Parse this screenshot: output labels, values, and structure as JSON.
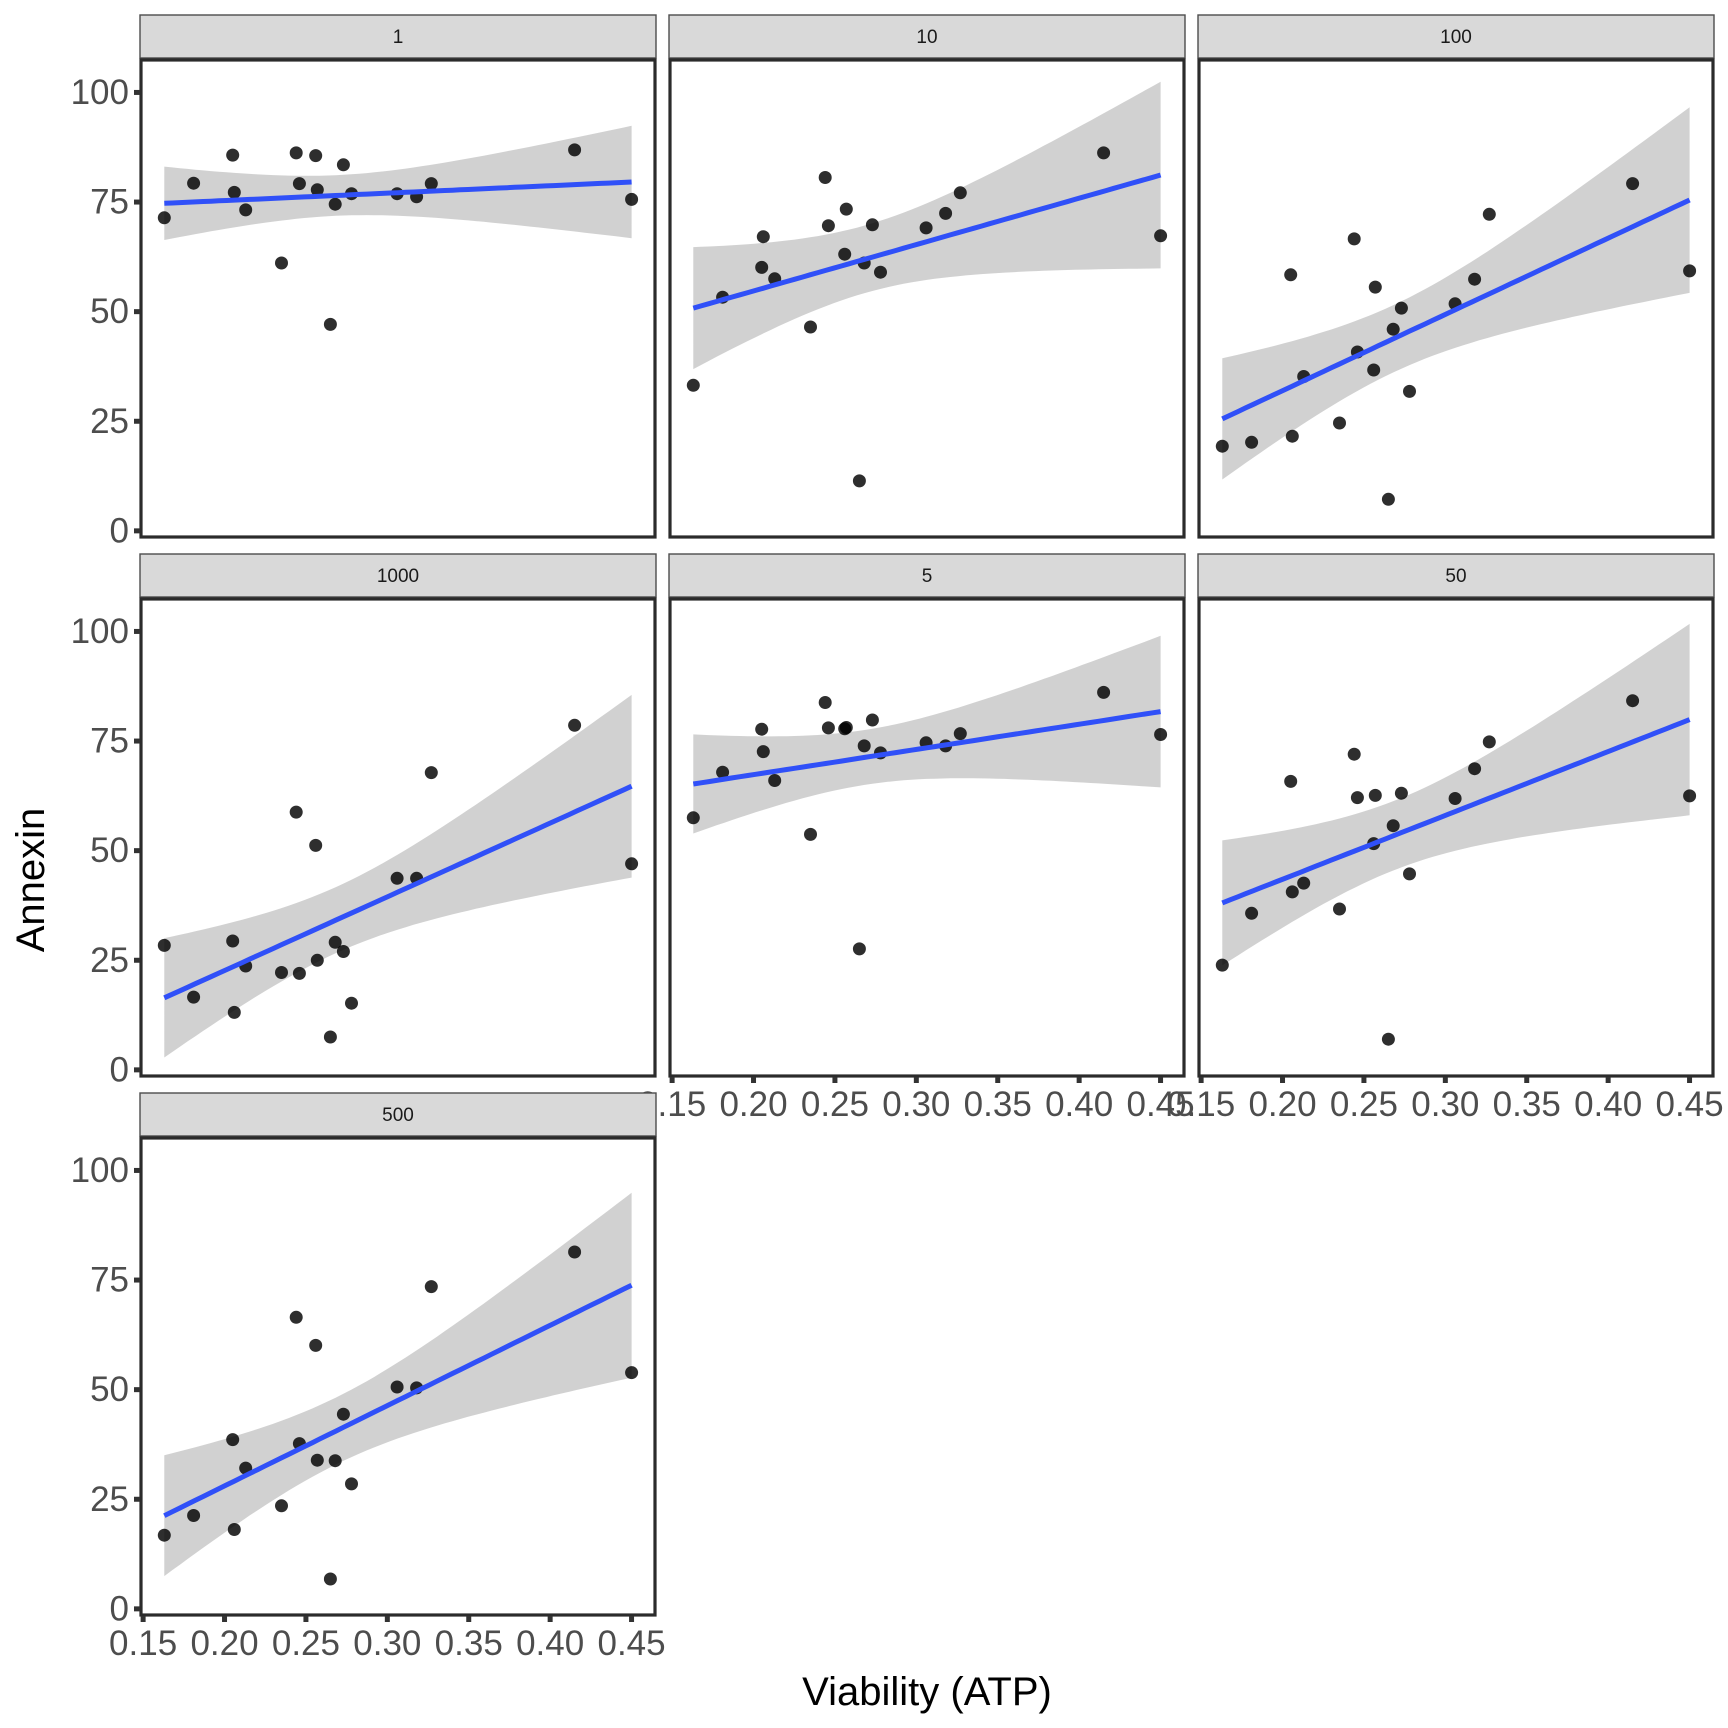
{
  "chart_data": {
    "type": "scatter",
    "title": "",
    "xlabel": "Viability (ATP)",
    "ylabel": "Annexin",
    "facet_layout": "wrap-3-columns",
    "xlim": [
      0.1487,
      0.4644
    ],
    "ylim": [
      -1.4,
      107.4
    ],
    "x_ticks": [
      0.15,
      0.2,
      0.25,
      0.3,
      0.35,
      0.4,
      0.45
    ],
    "x_tick_labels": [
      "0.15",
      "0.20",
      "0.25",
      "0.30",
      "0.35",
      "0.40",
      "0.45"
    ],
    "y_ticks": [
      0,
      25,
      50,
      75,
      100
    ],
    "y_tick_labels": [
      "0",
      "25",
      "50",
      "75",
      "100"
    ],
    "grid": false,
    "smooth": {
      "method": "lm",
      "se": true,
      "level": 0.95,
      "line_color": "#3050f8",
      "ribbon_color": "#cfcfcf"
    },
    "point_color": "#000000",
    "x": [
      0.163,
      0.181,
      0.205,
      0.206,
      0.213,
      0.235,
      0.244,
      0.246,
      0.256,
      0.257,
      0.265,
      0.268,
      0.273,
      0.278,
      0.306,
      0.318,
      0.327,
      0.415,
      0.45
    ],
    "series": [
      {
        "name": "1",
        "values": [
          71.4,
          79.3,
          85.7,
          77.2,
          73.2,
          61.1,
          86.2,
          79.2,
          85.6,
          77.8,
          47.1,
          74.5,
          83.5,
          76.9,
          76.9,
          76.2,
          79.2,
          86.9,
          75.6
        ]
      },
      {
        "name": "10",
        "values": [
          33.2,
          53.3,
          60.1,
          67.1,
          57.5,
          46.5,
          80.6,
          69.6,
          63.1,
          73.4,
          11.4,
          61.1,
          69.8,
          59.0,
          69.1,
          72.4,
          77.1,
          86.2,
          67.3
        ]
      },
      {
        "name": "100",
        "values": [
          19.3,
          20.2,
          58.4,
          21.6,
          35.2,
          24.6,
          66.6,
          40.8,
          36.7,
          55.6,
          7.2,
          46.0,
          50.8,
          31.8,
          51.8,
          57.4,
          72.2,
          79.2,
          59.3
        ]
      },
      {
        "name": "1000",
        "values": [
          28.4,
          16.6,
          29.4,
          13.1,
          23.7,
          22.2,
          58.8,
          22.0,
          51.2,
          25.0,
          7.5,
          29.1,
          27.0,
          15.2,
          43.7,
          43.7,
          67.8,
          78.6,
          47.0
        ]
      },
      {
        "name": "5",
        "values": [
          57.5,
          67.9,
          77.7,
          72.6,
          66.0,
          53.7,
          83.8,
          78.0,
          77.8,
          78.1,
          27.6,
          73.9,
          79.8,
          72.3,
          74.6,
          73.9,
          76.7,
          86.1,
          76.5
        ]
      },
      {
        "name": "50",
        "values": [
          23.9,
          35.7,
          65.8,
          40.6,
          42.6,
          36.7,
          72.0,
          62.1,
          51.6,
          62.6,
          7.0,
          55.7,
          63.1,
          44.7,
          61.9,
          68.7,
          74.8,
          84.2,
          62.5
        ]
      },
      {
        "name": "500",
        "values": [
          16.8,
          21.3,
          38.6,
          18.1,
          32.1,
          23.5,
          66.5,
          37.7,
          60.1,
          33.9,
          6.8,
          33.8,
          44.4,
          28.5,
          50.6,
          50.4,
          73.5,
          81.4,
          53.9
        ]
      }
    ]
  }
}
